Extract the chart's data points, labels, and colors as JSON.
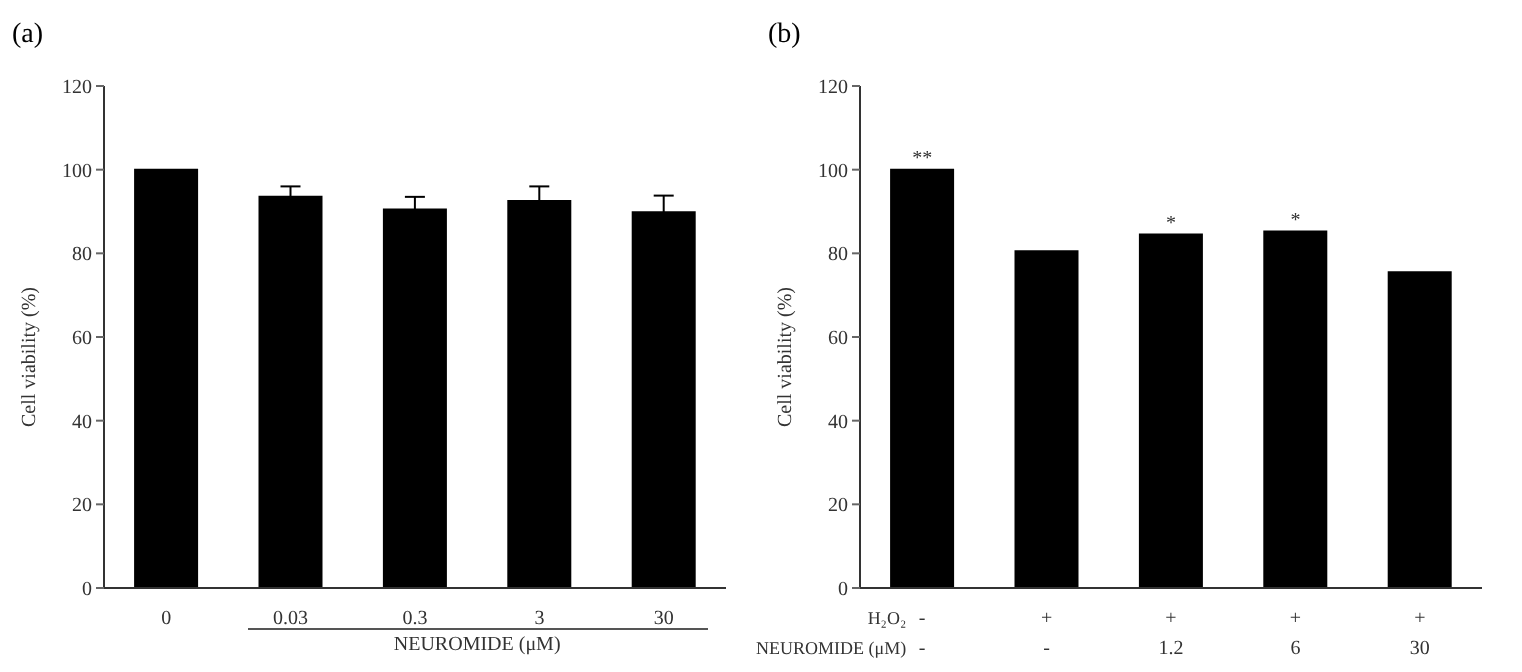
{
  "chart_data": [
    {
      "type": "bar",
      "title": "(a)",
      "ylabel": "Cell viability (%)",
      "xlabel": "NEUROMIDE (μM)",
      "categories": [
        "0",
        "0.03",
        "0.3",
        "3",
        "30"
      ],
      "values": [
        100,
        93.5,
        90.5,
        92.5,
        89.8
      ],
      "errors": [
        null,
        2.5,
        3,
        3.5,
        4
      ],
      "color": "#000000",
      "ylim": [
        0,
        120
      ],
      "yticks": [
        0,
        20,
        40,
        60,
        80,
        100,
        120
      ],
      "grid": false
    },
    {
      "type": "bar",
      "title": "(b)",
      "ylabel": "Cell viability (%)",
      "xlabel": "H₂O₂\nNEUROMIDE (μM)",
      "categories": [
        "-\n-",
        "+\n-",
        "+\n1.2",
        "+\n6",
        "+\n30"
      ],
      "values": [
        100,
        80.5,
        84.5,
        85.2,
        75.5
      ],
      "color": "#000000",
      "ylim": [
        0,
        120
      ],
      "yticks": [
        0,
        20,
        40,
        60,
        80,
        100,
        120
      ],
      "grid": false,
      "annotations": [
        {
          "text": "**",
          "x": "-\n-",
          "y": 100
        },
        {
          "text": "*",
          "x": "+\n1.2",
          "y": 84.5
        },
        {
          "text": "*",
          "x": "+\n6",
          "y": 85.2
        }
      ]
    }
  ]
}
